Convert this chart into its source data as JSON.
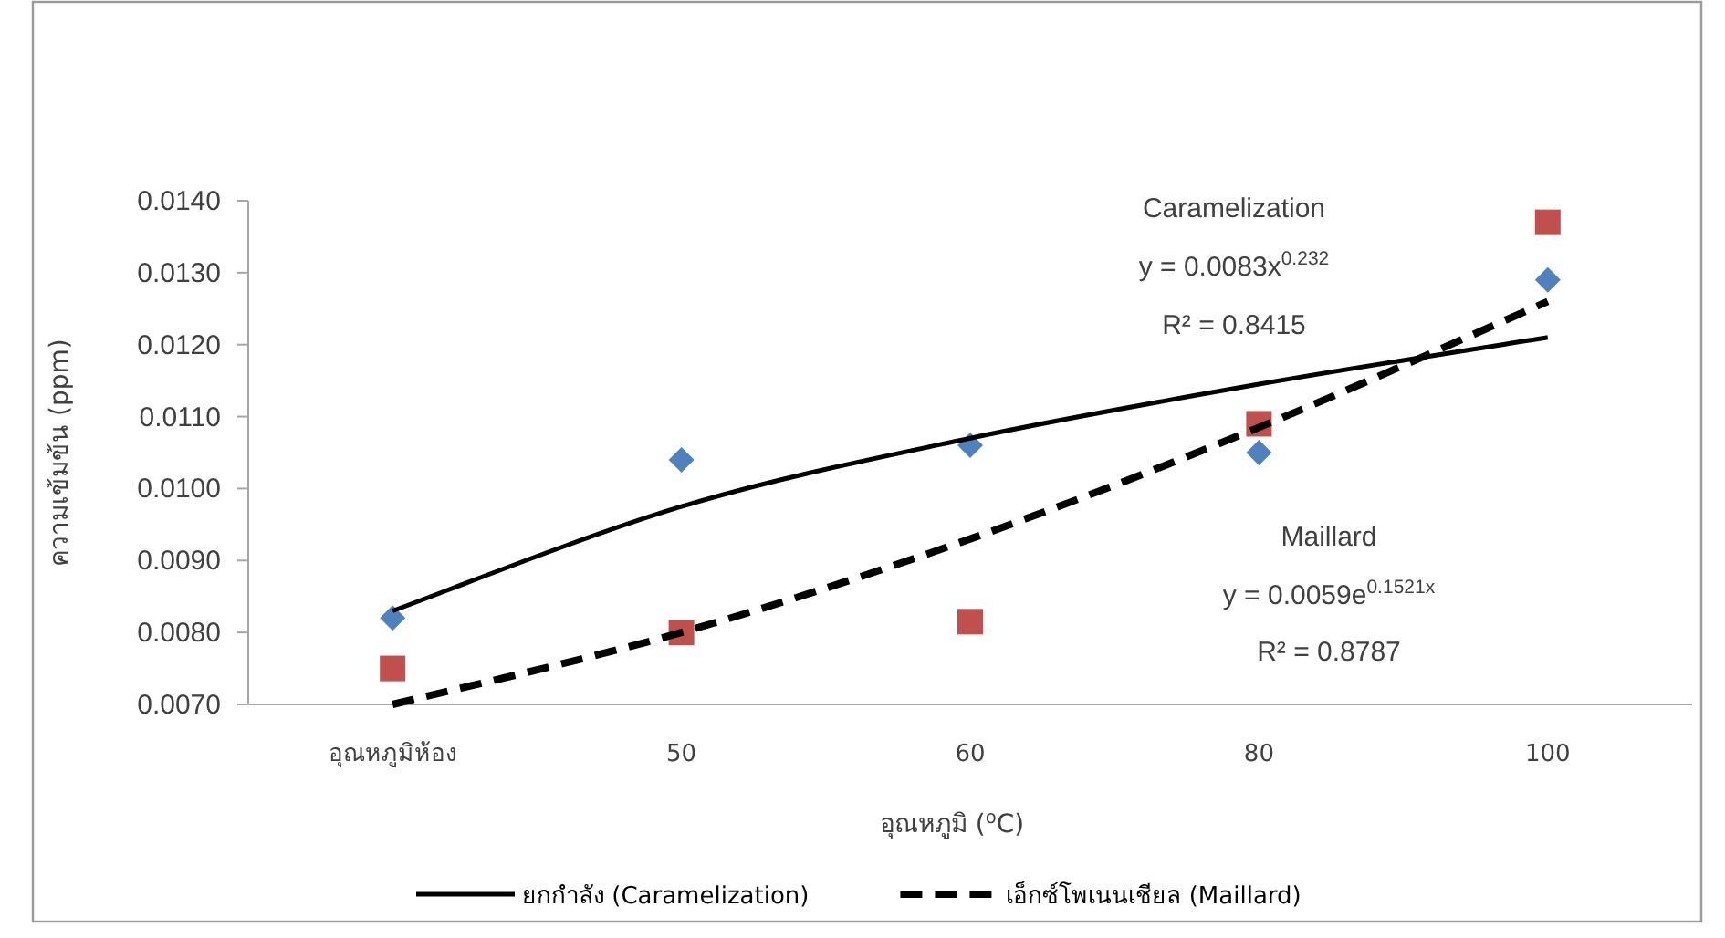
{
  "chart_data": {
    "type": "scatter",
    "xlabel": "อุณหภูมิ ($^{o}$C)",
    "ylabel": "ความเข้มข้น (ppm)",
    "categories": [
      "อุณหภูมิห้อง",
      "50",
      "60",
      "80",
      "100"
    ],
    "ylim": [
      0.007,
      0.014
    ],
    "yticks": [
      {
        "value": 0.007,
        "label": "0.0070"
      },
      {
        "value": 0.008,
        "label": "0.0080"
      },
      {
        "value": 0.009,
        "label": "0.0090"
      },
      {
        "value": 0.01,
        "label": "0.0100"
      },
      {
        "value": 0.011,
        "label": "0.0110"
      },
      {
        "value": 0.012,
        "label": "0.0120"
      },
      {
        "value": 0.013,
        "label": "0.0130"
      },
      {
        "value": 0.014,
        "label": "0.0140"
      }
    ],
    "series": [
      {
        "type": "scatter",
        "color": "#4f81bd",
        "marker": "diamond",
        "values": [
          0.0082,
          0.0104,
          0.0106,
          0.0105,
          0.0129
        ]
      },
      {
        "type": "scatter",
        "color": "#c0504d",
        "marker": "square",
        "values": [
          0.0075,
          0.008,
          0.00815,
          0.0109,
          0.0137
        ]
      },
      {
        "type": "line",
        "name": "ยกกำลัง (Caramelization)",
        "color": "#000000",
        "marker": "none",
        "line_style": "solid",
        "values": [
          0.0083,
          0.00975,
          0.0107,
          0.01145,
          0.0121
        ]
      },
      {
        "type": "line",
        "name": "เอ็กซ์โพเนนเชียล (Maillard)",
        "color": "#000000",
        "marker": "none",
        "line_style": "dashed",
        "values": [
          0.007,
          0.008,
          0.0093,
          0.01085,
          0.0126
        ]
      }
    ],
    "annotations": [
      "Caramelization",
      "y = 0.0083x$^{0.232}$",
      "R² = 0.8415",
      "Maillard",
      "y = 0.0059e$^{0.1521x}$",
      "R² = 0.8787"
    ],
    "legend": "bottom"
  }
}
